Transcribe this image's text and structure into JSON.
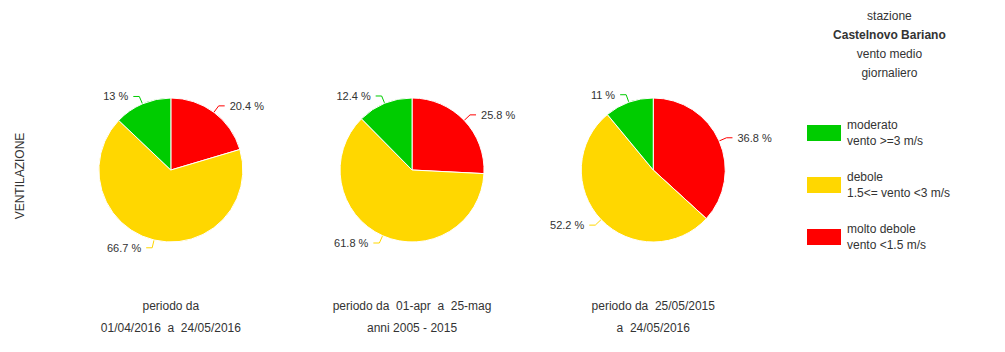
{
  "chart_data": {
    "type": "pie",
    "ylabel": "VENTILAZIONE",
    "legend": "right",
    "legend_title": [
      "stazione",
      "Castelnovo Bariano",
      "vento medio",
      "giornaliero"
    ],
    "categories": [
      "molto debole",
      "debole",
      "moderato"
    ],
    "category_notes": [
      "vento <1.5 m/s",
      "1.5<= vento <3 m/s",
      "vento >=3 m/s"
    ],
    "colors": [
      "#FF0000",
      "#FFD700",
      "#00CC00"
    ],
    "data_labels": true,
    "pies": [
      {
        "subtitle": [
          "periodo da",
          "01/04/2016  a  24/05/2016"
        ],
        "values": [
          20.4,
          66.7,
          12.9
        ],
        "value_labels": [
          "20.4 %",
          "66.7 %",
          "13 %"
        ]
      },
      {
        "subtitle": [
          "periodo da  01-apr  a  25-mag",
          "anni 2005 - 2015"
        ],
        "values": [
          25.8,
          61.8,
          12.4
        ],
        "value_labels": [
          "25.8 %",
          "61.8 %",
          "12.4 %"
        ]
      },
      {
        "subtitle": [
          "periodo da  25/05/2015",
          "a  24/05/2016"
        ],
        "values": [
          36.8,
          52.2,
          11.0
        ],
        "value_labels": [
          "36.8 %",
          "52.2 %",
          "11 %"
        ]
      }
    ]
  }
}
